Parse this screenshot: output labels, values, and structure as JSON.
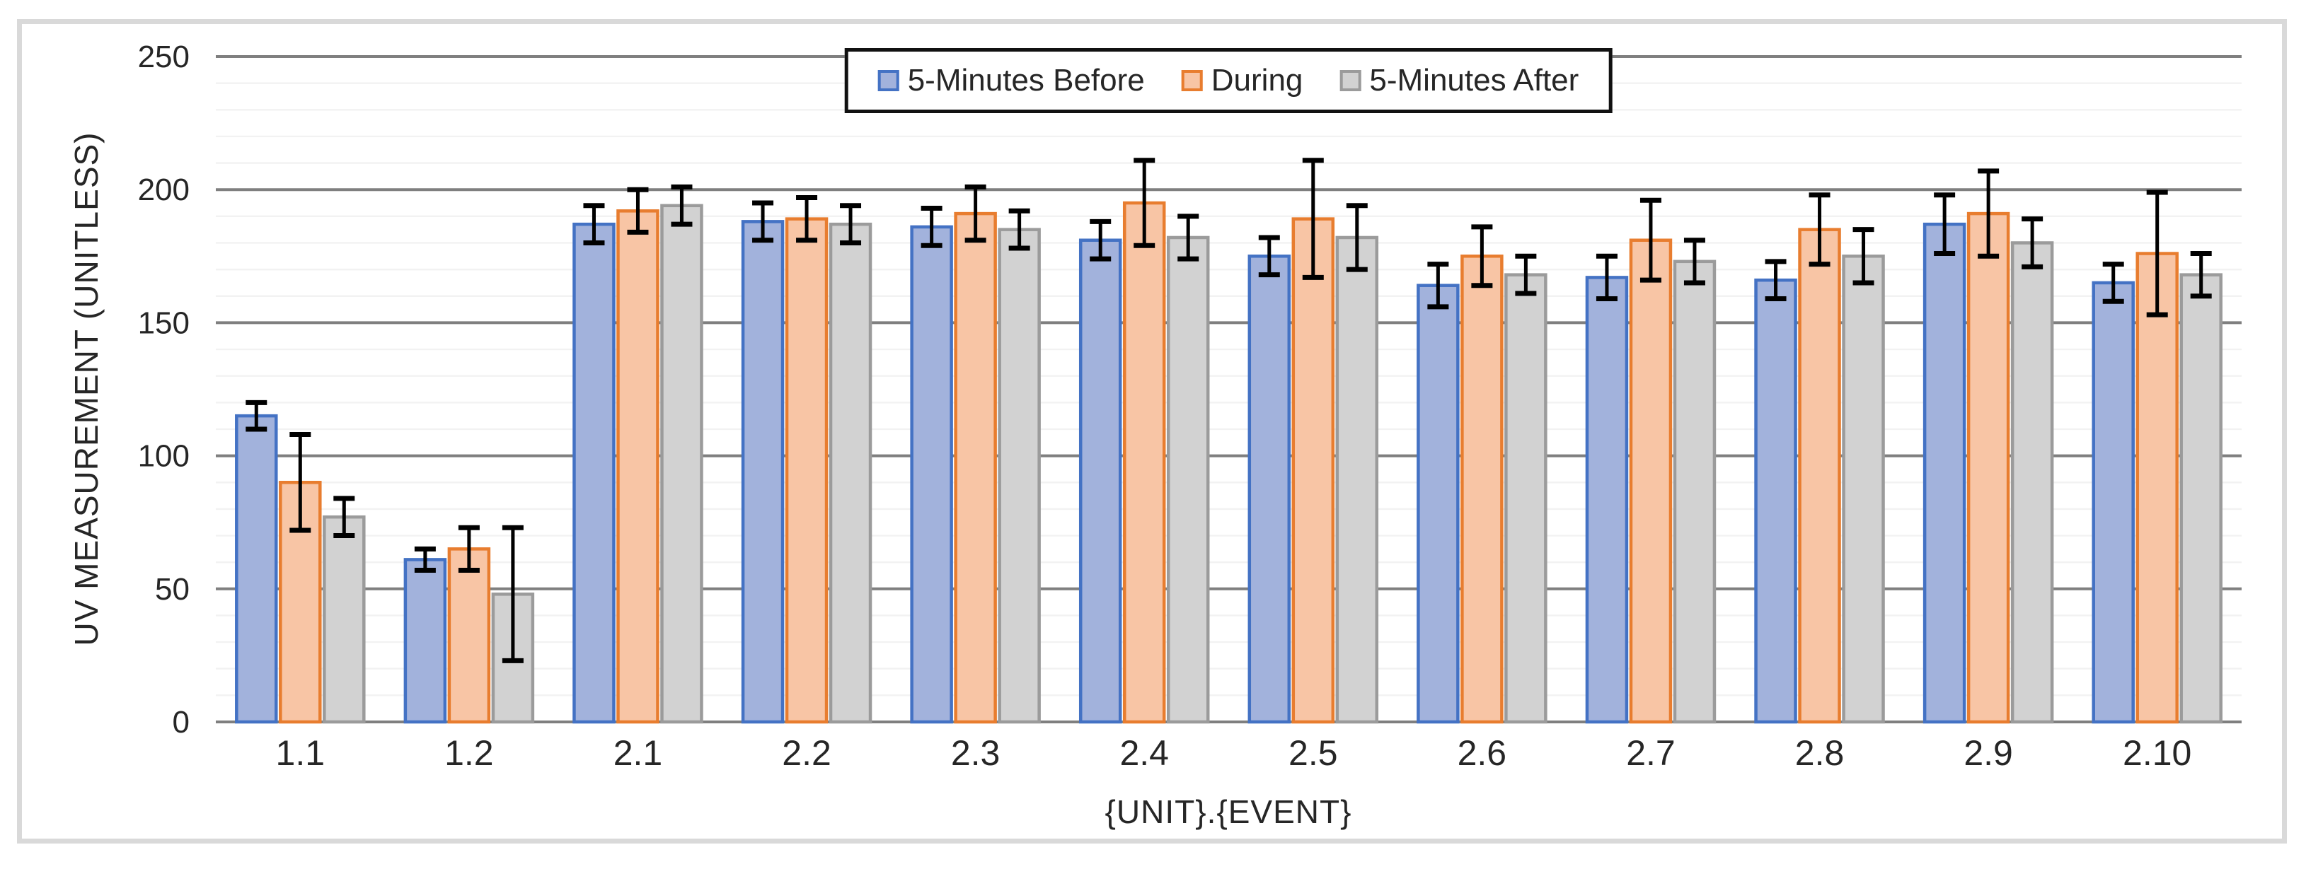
{
  "chart": {
    "y_axis_title": "UV MEASUREMENT (UNITLESS)",
    "x_axis_title": "{UNIT}.{EVENT}",
    "background_color": "#ffffff",
    "frame_border_color": "#d9d9d9",
    "major_gridline_color": "#7f7f7f",
    "minor_gridline_color": "#f2f2f2",
    "error_bar_color": "#000000",
    "text_color": "#262626",
    "legend_border_color": "#111111"
  },
  "chart_data": {
    "type": "bar",
    "title": "",
    "xlabel": "{UNIT}.{EVENT}",
    "ylabel": "UV MEASUREMENT (UNITLESS)",
    "ylim": [
      0,
      250
    ],
    "y_major_step": 50,
    "y_minor_step": 10,
    "y_tick_labels": [
      "0",
      "50",
      "100",
      "150",
      "200",
      "250"
    ],
    "grid": "major-dark-and-minor-light",
    "legend_position": "top-center-inside",
    "error_bars": true,
    "categories": [
      "1.1",
      "1.2",
      "2.1",
      "2.2",
      "2.3",
      "2.4",
      "2.5",
      "2.6",
      "2.7",
      "2.8",
      "2.9",
      "2.10"
    ],
    "series": [
      {
        "name": "5-Minutes Before",
        "fill": "#a2b2dc",
        "border": "#4472c4",
        "values": [
          115,
          61,
          187,
          188,
          186,
          181,
          175,
          164,
          167,
          166,
          187,
          165
        ],
        "error": [
          5,
          4,
          7,
          7,
          7,
          7,
          7,
          8,
          8,
          7,
          11,
          7
        ]
      },
      {
        "name": "During",
        "fill": "#f8c5a5",
        "border": "#e87d2f",
        "values": [
          90,
          65,
          192,
          189,
          191,
          195,
          189,
          175,
          181,
          185,
          191,
          176
        ],
        "error": [
          18,
          8,
          8,
          8,
          10,
          16,
          22,
          11,
          15,
          13,
          16,
          23
        ]
      },
      {
        "name": "5-Minutes After",
        "fill": "#d2d2d2",
        "border": "#9b9b9b",
        "values": [
          77,
          48,
          194,
          187,
          185,
          182,
          182,
          168,
          173,
          175,
          180,
          168
        ],
        "error": [
          7,
          25,
          7,
          7,
          7,
          8,
          12,
          7,
          8,
          10,
          9,
          8
        ]
      }
    ]
  }
}
